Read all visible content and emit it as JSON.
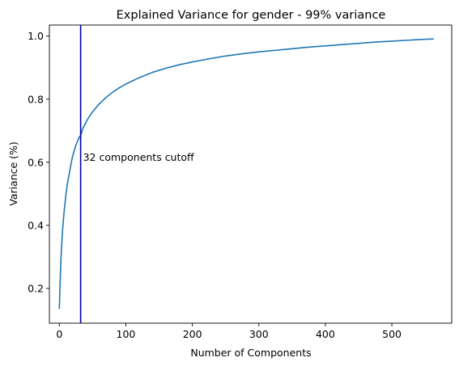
{
  "chart_data": {
    "type": "line",
    "title": "Explained Variance for gender - 99% variance",
    "xlabel": "Number of Components",
    "ylabel": "Variance (%)",
    "xlim": [
      -15,
      590
    ],
    "ylim": [
      0.09,
      1.035
    ],
    "x_ticks": [
      {
        "value": 0,
        "label": "0"
      },
      {
        "value": 100,
        "label": "100"
      },
      {
        "value": 200,
        "label": "200"
      },
      {
        "value": 300,
        "label": "300"
      },
      {
        "value": 400,
        "label": "400"
      },
      {
        "value": 500,
        "label": "500"
      }
    ],
    "y_ticks": [
      {
        "value": 0.2,
        "label": "0.2"
      },
      {
        "value": 0.4,
        "label": "0.4"
      },
      {
        "value": 0.6,
        "label": "0.6"
      },
      {
        "value": 0.8,
        "label": "0.8"
      },
      {
        "value": 1.0,
        "label": "1.0"
      }
    ],
    "grid": false,
    "series": [
      {
        "color": "#1f77b4",
        "x": [
          0,
          1,
          2,
          3,
          5,
          7,
          10,
          12,
          15,
          18,
          20,
          25,
          30,
          32,
          35,
          40,
          45,
          50,
          60,
          70,
          80,
          90,
          100,
          120,
          140,
          160,
          180,
          200,
          225,
          250,
          275,
          300,
          325,
          350,
          375,
          400,
          425,
          450,
          475,
          500,
          525,
          550,
          563
        ],
        "y": [
          0.135,
          0.21,
          0.27,
          0.32,
          0.39,
          0.44,
          0.5,
          0.53,
          0.565,
          0.6,
          0.62,
          0.655,
          0.68,
          0.685,
          0.705,
          0.727,
          0.745,
          0.76,
          0.785,
          0.805,
          0.822,
          0.836,
          0.848,
          0.868,
          0.885,
          0.898,
          0.909,
          0.918,
          0.928,
          0.937,
          0.944,
          0.95,
          0.955,
          0.96,
          0.965,
          0.969,
          0.973,
          0.977,
          0.981,
          0.984,
          0.987,
          0.99,
          0.991
        ]
      }
    ],
    "cutoff": {
      "x": 32,
      "color": "#0000aa",
      "label": "32 components cutoff",
      "label_y": 0.605
    }
  }
}
